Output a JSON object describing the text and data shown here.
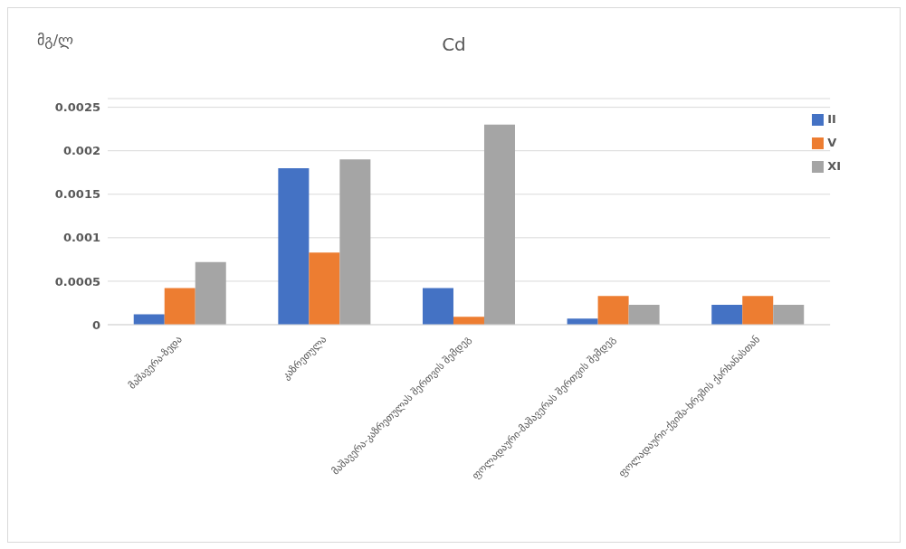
{
  "chart_data": {
    "type": "bar",
    "title": "Cd",
    "ylabel": "მგ/ლ",
    "categories": [
      "მაშავერა-ზედა",
      "კაზრეთულა",
      "მაშავერა-კაზრეთულას შერთვის შემდეგ",
      "ფოლადაური-მაშავერას შერთვის შემდეგ",
      "ფოლადაური-ქვიშა-ხრეშის ქარხანასთან"
    ],
    "series": [
      {
        "name": "II",
        "color": "#4472c4",
        "values": [
          0.00012,
          0.0018,
          0.00042,
          7e-05,
          0.00023
        ]
      },
      {
        "name": "V",
        "color": "#ed7d31",
        "values": [
          0.00042,
          0.00083,
          9e-05,
          0.00033,
          0.00033
        ]
      },
      {
        "name": "XI",
        "color": "#a5a5a5",
        "values": [
          0.00072,
          0.0019,
          0.0023,
          0.00023,
          0.00023
        ]
      }
    ],
    "ylim": [
      0,
      0.0026
    ],
    "yticks": [
      0,
      0.0005,
      0.001,
      0.0015,
      0.002,
      0.0025
    ],
    "grid": "y",
    "legend": "right"
  }
}
